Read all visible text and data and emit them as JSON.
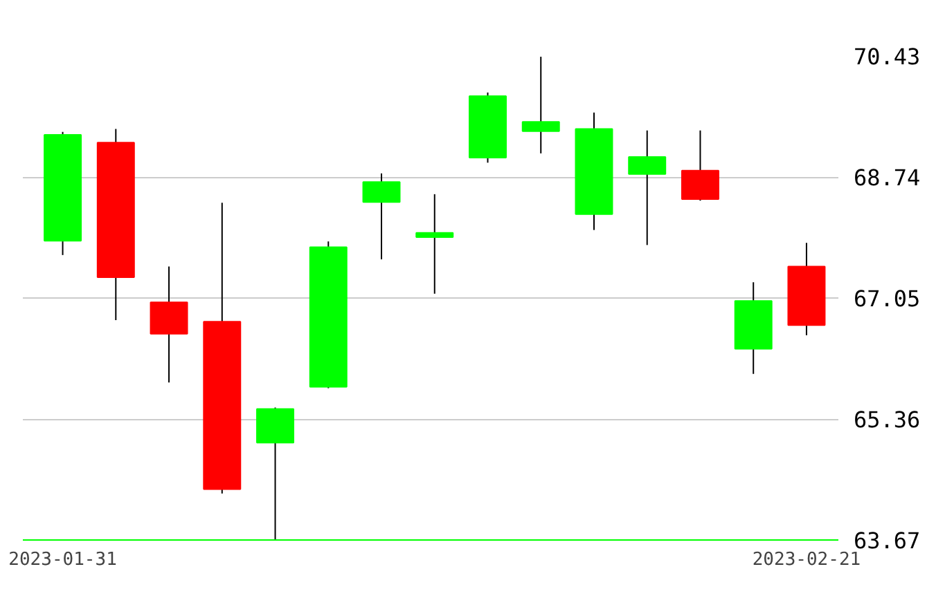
{
  "chart_data": {
    "type": "candlestick",
    "categories": [
      "2023-01-31",
      null,
      null,
      null,
      null,
      null,
      null,
      null,
      null,
      null,
      null,
      null,
      null,
      null,
      "2023-02-21"
    ],
    "ohlc": [
      [
        67.85,
        69.37,
        67.65,
        69.33
      ],
      [
        69.22,
        69.41,
        66.74,
        67.34
      ],
      [
        66.99,
        67.49,
        65.87,
        66.55
      ],
      [
        66.72,
        68.38,
        64.32,
        64.38
      ],
      [
        65.03,
        65.52,
        63.67,
        65.5
      ],
      [
        65.81,
        67.84,
        65.79,
        67.76
      ],
      [
        68.39,
        68.79,
        67.59,
        68.67
      ],
      [
        67.9,
        68.5,
        67.11,
        67.96
      ],
      [
        69.01,
        69.92,
        68.94,
        69.87
      ],
      [
        69.38,
        70.42,
        69.07,
        69.51
      ],
      [
        68.22,
        69.64,
        68.0,
        69.41
      ],
      [
        68.78,
        69.39,
        67.79,
        69.02
      ],
      [
        68.83,
        69.39,
        68.41,
        68.43
      ],
      [
        66.34,
        67.27,
        65.99,
        67.01
      ],
      [
        67.49,
        67.82,
        66.53,
        66.67
      ]
    ],
    "colors": [
      "#00ff00",
      "#ff0000",
      "#ff0000",
      "#ff0000",
      "#00ff00",
      "#00ff00",
      "#00ff00",
      "#00ff00",
      "#00ff00",
      "#00ff00",
      "#00ff00",
      "#00ff00",
      "#ff0000",
      "#00ff00",
      "#ff0000"
    ],
    "ylim": [
      63.67,
      70.43
    ],
    "yticks": [
      63.67,
      65.36,
      67.05,
      68.74,
      70.43
    ],
    "grid": "y"
  }
}
